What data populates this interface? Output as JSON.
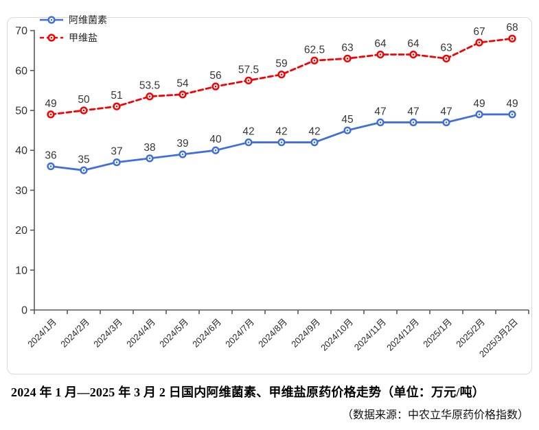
{
  "chart_data": {
    "type": "line",
    "categories": [
      "2024/1月",
      "2024/2月",
      "2024/3月",
      "2024/4月",
      "2024/5月",
      "2024/6月",
      "2024/7月",
      "2024/8月",
      "2024/9月",
      "2024/10月",
      "2024/11月",
      "2024/12月",
      "2025/1月",
      "2025/2月",
      "2025/3月2日"
    ],
    "series": [
      {
        "name": "阿维菌素",
        "values": [
          36,
          35,
          37,
          38,
          39,
          40,
          42,
          42,
          42,
          45,
          47,
          47,
          47,
          49,
          49
        ],
        "color": "#3f6fdd",
        "line_style": "solid",
        "marker": "circle-dot"
      },
      {
        "name": "甲维盐",
        "values": [
          49,
          50,
          51,
          53.5,
          54,
          56,
          57.5,
          59,
          62.5,
          63,
          64,
          64,
          63,
          67,
          68
        ],
        "color": "#f70000",
        "line_style": "dashed",
        "marker": "circle-dot"
      }
    ],
    "ylim": [
      0,
      70
    ],
    "yticks": [
      0,
      10,
      20,
      30,
      40,
      50,
      60,
      70
    ],
    "grid": false,
    "legend_position": "top-left",
    "show_data_labels": true,
    "xlabel": "",
    "ylabel": ""
  },
  "caption": {
    "title": "2024 年 1 月—2025 年 3 月 2 日国内阿维菌素、甲维盐原药价格走势（单位：万元/吨）",
    "source": "（数据来源：中农立华原药价格指数）"
  },
  "colors": {
    "axis": "#595959",
    "tick_label": "#333333",
    "value_label": "#363636",
    "card_border": "#d9d9d9",
    "background": "#ffffff"
  }
}
